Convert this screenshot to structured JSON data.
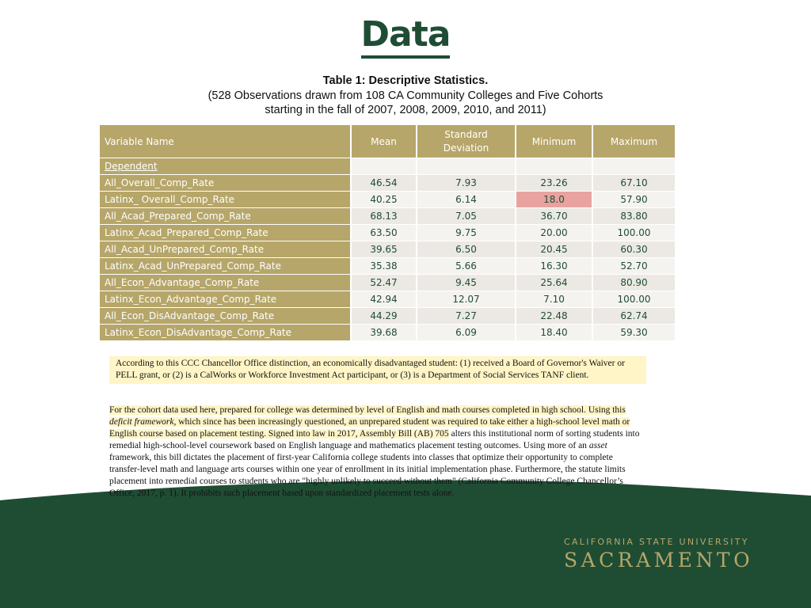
{
  "title": "Data",
  "caption": {
    "line1": "Table 1: Descriptive Statistics.",
    "line2": "(528 Observations drawn from 108 CA Community Colleges and Five Cohorts",
    "line3": "starting in the fall of 2007, 2008, 2009, 2010, and 2011)"
  },
  "table": {
    "headers": [
      "Variable Name",
      "Mean",
      "Standard Deviation",
      "Minimum",
      "Maximum"
    ],
    "section_label": "Dependent",
    "rows": [
      [
        "All_Overall_Comp_Rate",
        "46.54",
        "7.93",
        "23.26",
        "67.10"
      ],
      [
        "Latinx_ Overall_Comp_Rate",
        "40.25",
        "6.14",
        "18.0",
        "57.90"
      ],
      [
        "All_Acad_Prepared_Comp_Rate",
        "68.13",
        "7.05",
        "36.70",
        "83.80"
      ],
      [
        "Latinx_Acad_Prepared_Comp_Rate",
        "63.50",
        "9.75",
        "20.00",
        "100.00"
      ],
      [
        "All_Acad_UnPrepared_Comp_Rate",
        "39.65",
        "6.50",
        "20.45",
        "60.30"
      ],
      [
        "Latinx_Acad_UnPrepared_Comp_Rate",
        "35.38",
        "5.66",
        "16.30",
        "52.70"
      ],
      [
        "All_Econ_Advantage_Comp_Rate",
        "52.47",
        "9.45",
        "25.64",
        "80.90"
      ],
      [
        "Latinx_Econ_Advantage_Comp_Rate",
        "42.94",
        "12.07",
        "7.10",
        "100.00"
      ],
      [
        "All_Econ_DisAdvantage_Comp_Rate",
        "44.29",
        "7.27",
        "22.48",
        "62.74"
      ],
      [
        "Latinx_Econ_DisAdvantage_Comp_Rate",
        "39.68",
        "6.09",
        "18.40",
        "59.30"
      ]
    ]
  },
  "note1": "According to this CCC Chancellor Office distinction, an economically disadvantaged student: (1) received a Board of Governor's Waiver or PELL grant, or (2) is a CalWorks or Workforce Investment Act participant, or (3) is a Department of Social Services TANF client.",
  "note2": {
    "part1": "For the cohort data used here, prepared for college was determined by level of English and math courses completed in high school.  Using this ",
    "italic1": "deficit framework,",
    "part2": " which since has been increasingly questioned, an unprepared student was required to take either a high-school level math or English course based on placement testing.  Signed into law in 2017, Assembly Bill (AB) 705",
    "part3": " alters this institutional norm of sorting students into remedial high-school-level coursework based on English language and mathematics placement testing outcomes.  Using more of an ",
    "italic2": "asset",
    "part4": " framework, this bill dictates the placement of first-year California college students into classes that optimize their opportunity to complete transfer-level math and language arts courses within one year of enrollment in its initial implementation phase.  Furthermore, the statute limits placement into remedial courses to students who are \"highly unlikely to succeed without them\" (California Community College Chancellor’s Office, 2017, p. 1).  It prohibits such placement based upon standardized placement tests alone."
  },
  "logo": {
    "line1": "CALIFORNIA STATE UNIVERSITY",
    "line2": "SACRAMENTO"
  },
  "colors": {
    "green": "#1f4d34",
    "gold": "#b6a669",
    "highlight": "#e8a3a0",
    "note_bg": "#fff5c6"
  }
}
